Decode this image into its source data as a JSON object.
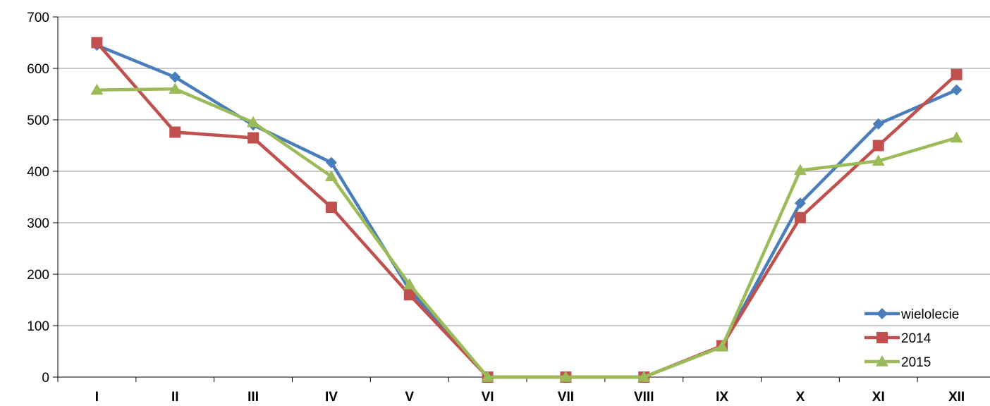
{
  "chart_data": {
    "type": "line",
    "title": "",
    "xlabel": "",
    "ylabel": "",
    "categories": [
      "I",
      "II",
      "III",
      "IV",
      "V",
      "VI",
      "VII",
      "VIII",
      "IX",
      "X",
      "XI",
      "XII"
    ],
    "ylim": [
      0,
      700
    ],
    "yticks": [
      0,
      100,
      200,
      300,
      400,
      500,
      600,
      700
    ],
    "grid": "horizontal",
    "legend_position": "bottom-right",
    "series": [
      {
        "name": "wielolecie",
        "color": "#4a7ebb",
        "marker": "diamond",
        "values": [
          645,
          583,
          490,
          417,
          170,
          0,
          0,
          0,
          60,
          338,
          492,
          558
        ]
      },
      {
        "name": "2014",
        "color": "#c0504d",
        "marker": "square",
        "values": [
          650,
          476,
          465,
          330,
          160,
          0,
          0,
          0,
          61,
          310,
          450,
          588
        ]
      },
      {
        "name": "2015",
        "color": "#9bbb59",
        "marker": "triangle",
        "values": [
          558,
          560,
          495,
          390,
          180,
          0,
          0,
          0,
          59,
          402,
          420,
          465
        ]
      }
    ]
  }
}
